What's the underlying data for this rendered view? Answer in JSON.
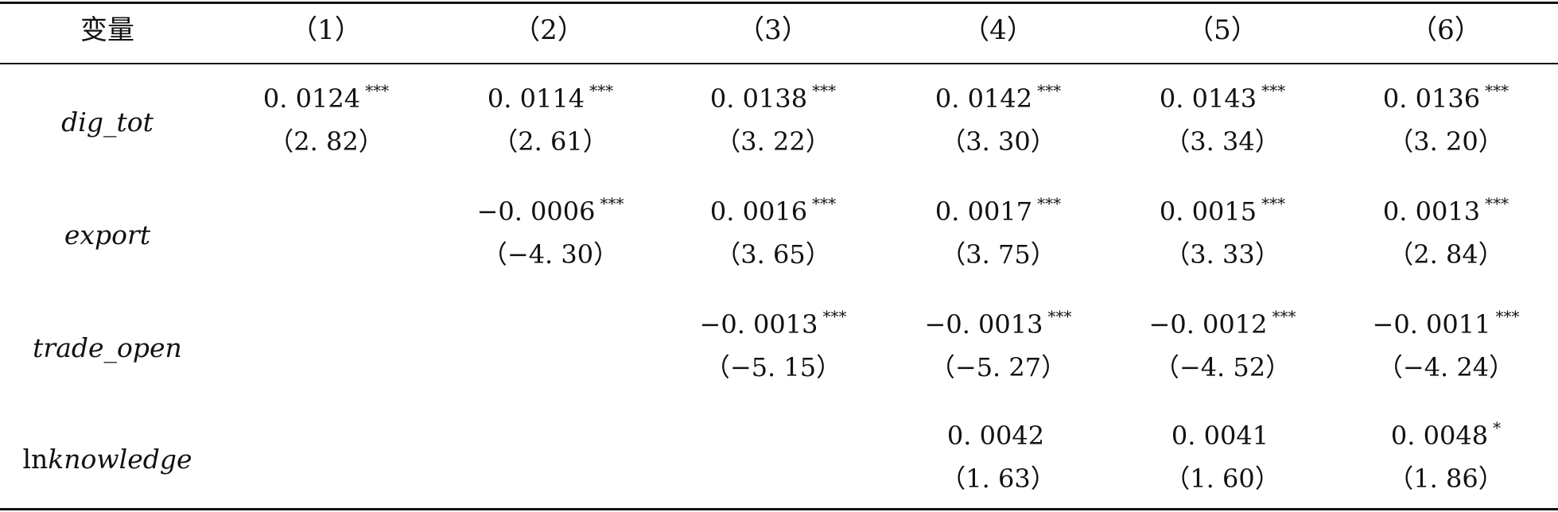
{
  "headers": [
    "变量",
    "（1）",
    "（2）",
    "（3）",
    "（4）",
    "（5）",
    "（6）"
  ],
  "rows": [
    {
      "variable_prefix": "",
      "variable": "dig_tot",
      "cells": [
        {
          "coef": "0. 0124",
          "stars": "***",
          "t": "（2. 82）"
        },
        {
          "coef": "0. 0114",
          "stars": "***",
          "t": "（2. 61）"
        },
        {
          "coef": "0. 0138",
          "stars": "***",
          "t": "（3. 22）"
        },
        {
          "coef": "0. 0142",
          "stars": "***",
          "t": "（3. 30）"
        },
        {
          "coef": "0. 0143",
          "stars": "***",
          "t": "（3. 34）"
        },
        {
          "coef": "0. 0136",
          "stars": "***",
          "t": "（3. 20）"
        }
      ]
    },
    {
      "variable_prefix": "",
      "variable": "export",
      "cells": [
        null,
        {
          "coef": "−0. 0006",
          "stars": "***",
          "t": "（−4. 30）"
        },
        {
          "coef": "0. 0016",
          "stars": "***",
          "t": "（3. 65）"
        },
        {
          "coef": "0. 0017",
          "stars": "***",
          "t": "（3. 75）"
        },
        {
          "coef": "0. 0015",
          "stars": "***",
          "t": "（3. 33）"
        },
        {
          "coef": "0. 0013",
          "stars": "***",
          "t": "（2. 84）"
        }
      ]
    },
    {
      "variable_prefix": "",
      "variable": "trade_open",
      "cells": [
        null,
        null,
        {
          "coef": "−0. 0013",
          "stars": "***",
          "t": "（−5. 15）"
        },
        {
          "coef": "−0. 0013",
          "stars": "***",
          "t": "（−5. 27）"
        },
        {
          "coef": "−0. 0012",
          "stars": "***",
          "t": "（−4. 52）"
        },
        {
          "coef": "−0. 0011",
          "stars": "***",
          "t": "（−4. 24）"
        }
      ]
    },
    {
      "variable_prefix": "ln",
      "variable": "knowledge",
      "cells": [
        null,
        null,
        null,
        {
          "coef": "0. 0042",
          "stars": "",
          "t": "（1. 63）"
        },
        {
          "coef": "0. 0041",
          "stars": "",
          "t": "（1. 60）"
        },
        {
          "coef": "0. 0048",
          "stars": "*",
          "t": "（1. 86）"
        }
      ]
    }
  ]
}
